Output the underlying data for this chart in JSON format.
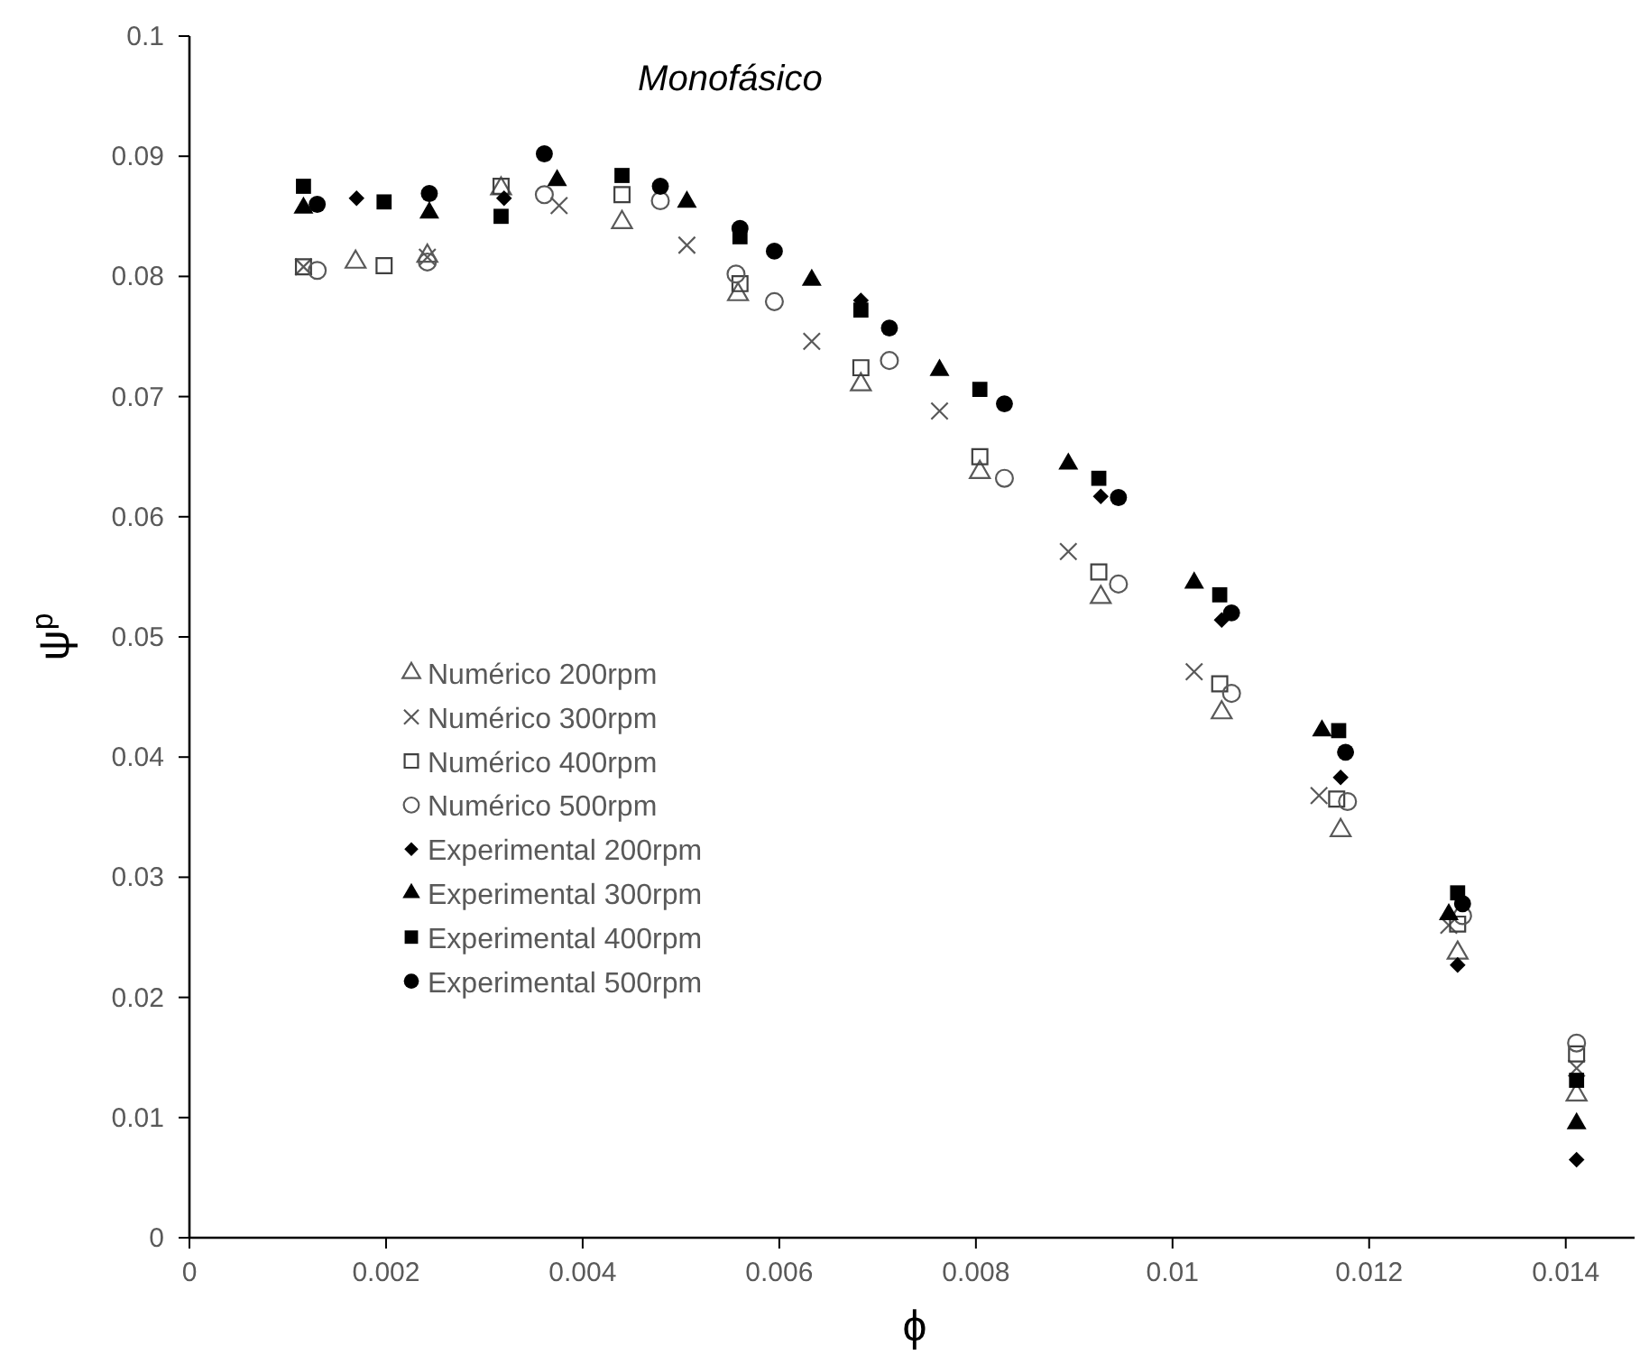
{
  "chart_data": {
    "type": "scatter",
    "title": "Monofásico",
    "xlabel": "ϕ",
    "ylabel": "ψ$^{p}$",
    "xlim": [
      0,
      0.0147
    ],
    "xticks": [
      0,
      0.002,
      0.004,
      0.006,
      0.008,
      0.01,
      0.012,
      0.014
    ],
    "ylim": [
      0,
      0.1
    ],
    "yticks": [
      0,
      0.01,
      0.02,
      0.03,
      0.04,
      0.05,
      0.06,
      0.07,
      0.08,
      0.09,
      0.1
    ],
    "grid": false,
    "legend": "bottom left",
    "series": [
      {
        "name": "Numérico 200rpm",
        "color": "#595959",
        "marker": "triangle-open",
        "x": [
          0.00169,
          0.00242,
          0.00317,
          0.0044,
          0.00558,
          0.00683,
          0.00804,
          0.00927,
          0.0105,
          0.01171,
          0.0129,
          0.01411
        ],
        "values": [
          0.0812,
          0.0817,
          0.0873,
          0.0845,
          0.0785,
          0.071,
          0.0637,
          0.0533,
          0.0437,
          0.0339,
          0.0237,
          0.0119
        ]
      },
      {
        "name": "Numérico 300rpm",
        "color": "#595959",
        "marker": "cross",
        "x": [
          0.00116,
          0.00242,
          0.00376,
          0.00506,
          0.00633,
          0.00763,
          0.00894,
          0.01022,
          0.01149,
          0.01281,
          0.01411
        ],
        "values": [
          0.0808,
          0.0816,
          0.0859,
          0.0826,
          0.0746,
          0.0688,
          0.0571,
          0.0471,
          0.0368,
          0.026,
          0.0141
        ]
      },
      {
        "name": "Numérico 400rpm",
        "color": "#404040",
        "marker": "square-open",
        "x": [
          0.00116,
          0.00198,
          0.00317,
          0.0044,
          0.0056,
          0.00683,
          0.00804,
          0.00925,
          0.01048,
          0.01167,
          0.0129,
          0.01411
        ],
        "values": [
          0.0808,
          0.0809,
          0.0875,
          0.0868,
          0.0794,
          0.0724,
          0.065,
          0.0554,
          0.0461,
          0.0365,
          0.0261,
          0.0153
        ]
      },
      {
        "name": "Numérico 500rpm",
        "color": "#595959",
        "marker": "circle-open",
        "x": [
          0.0013,
          0.00242,
          0.00361,
          0.00479,
          0.00556,
          0.00595,
          0.00712,
          0.00829,
          0.00945,
          0.0106,
          0.01178,
          0.01295,
          0.01411
        ],
        "values": [
          0.0805,
          0.0812,
          0.0868,
          0.0863,
          0.0802,
          0.0779,
          0.073,
          0.0632,
          0.0544,
          0.0453,
          0.0363,
          0.0268,
          0.0162
        ]
      },
      {
        "name": "Experimental 200rpm",
        "color": "#000000",
        "marker": "diamond",
        "x": [
          0.0017,
          0.0032,
          0.00683,
          0.00927,
          0.0105,
          0.01171,
          0.0129,
          0.01411
        ],
        "values": [
          0.0865,
          0.0865,
          0.078,
          0.0617,
          0.0514,
          0.0383,
          0.0227,
          0.0065
        ]
      },
      {
        "name": "Experimental 300rpm",
        "color": "#000000",
        "marker": "triangle",
        "x": [
          0.00116,
          0.00244,
          0.00374,
          0.00506,
          0.00633,
          0.00763,
          0.00894,
          0.01022,
          0.01152,
          0.01281,
          0.01411
        ],
        "values": [
          0.0857,
          0.0853,
          0.088,
          0.0862,
          0.0797,
          0.0722,
          0.0644,
          0.0545,
          0.0422,
          0.0269,
          0.0095
        ]
      },
      {
        "name": "Experimental 400rpm",
        "color": "#000000",
        "marker": "square",
        "x": [
          0.00116,
          0.00198,
          0.00317,
          0.0044,
          0.0056,
          0.00683,
          0.00804,
          0.00925,
          0.01048,
          0.01169,
          0.0129,
          0.01411
        ],
        "values": [
          0.0875,
          0.0862,
          0.085,
          0.0884,
          0.0833,
          0.0772,
          0.0706,
          0.0632,
          0.0535,
          0.0422,
          0.0287,
          0.0131
        ]
      },
      {
        "name": "Experimental 500rpm",
        "color": "#000000",
        "marker": "circle",
        "x": [
          0.0013,
          0.00244,
          0.00361,
          0.00479,
          0.0056,
          0.00595,
          0.00712,
          0.00829,
          0.00945,
          0.0106,
          0.01176,
          0.01295
        ],
        "values": [
          0.086,
          0.0869,
          0.0902,
          0.0875,
          0.084,
          0.0821,
          0.0757,
          0.0694,
          0.0616,
          0.052,
          0.0404,
          0.0278
        ]
      }
    ]
  }
}
